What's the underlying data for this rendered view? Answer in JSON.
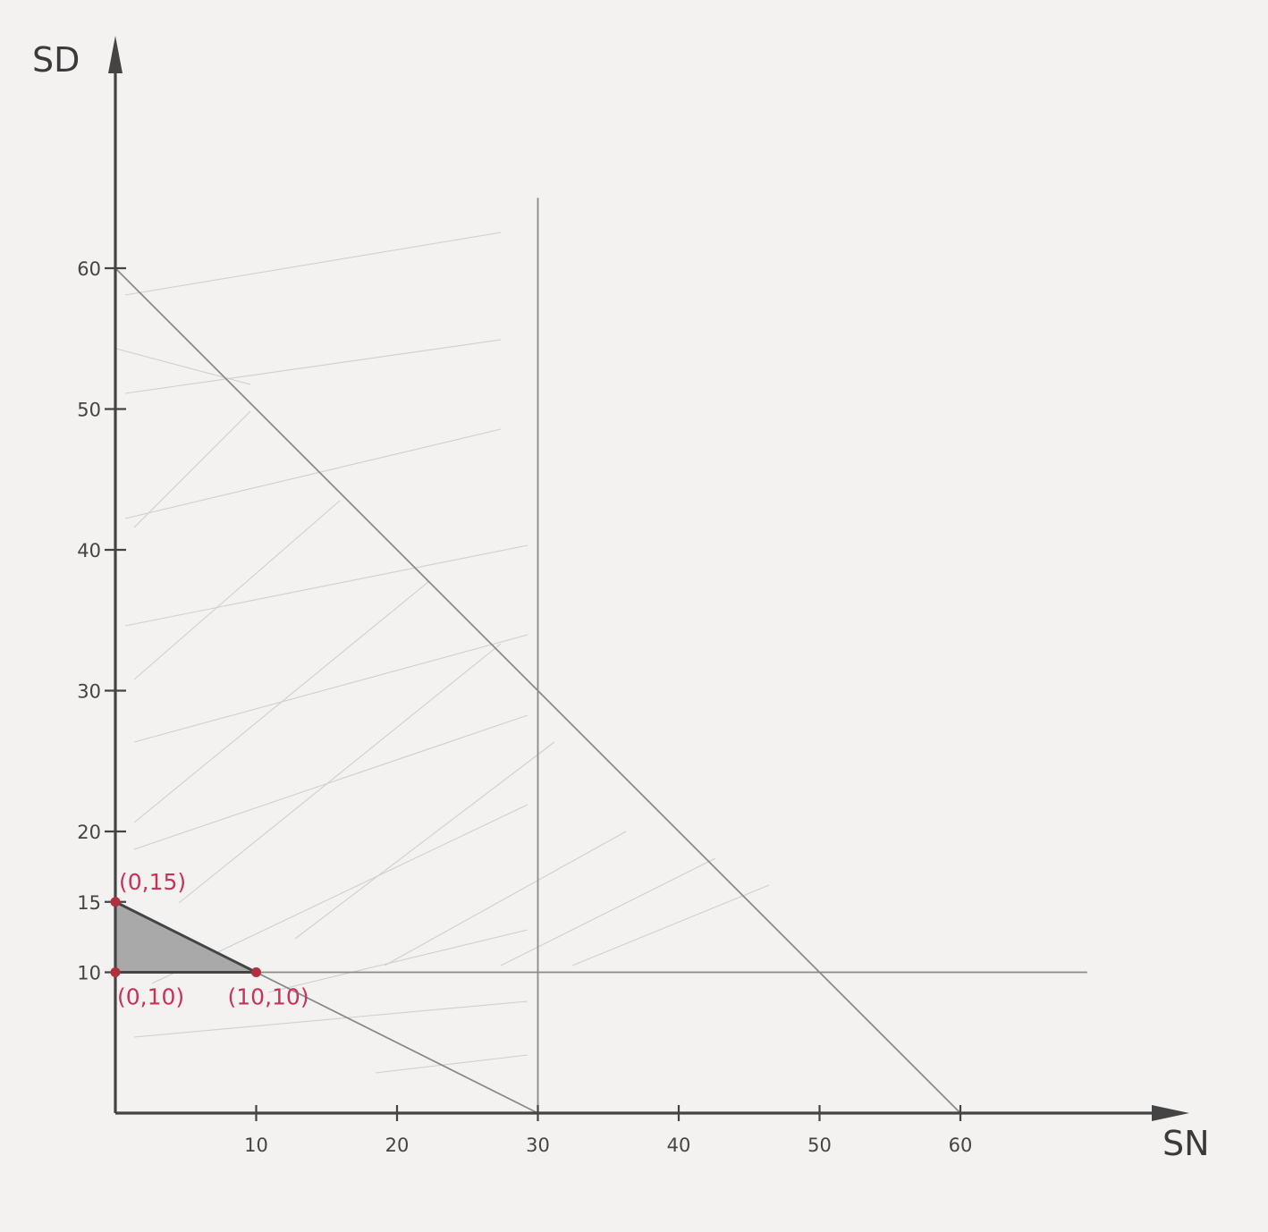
{
  "chart_data": {
    "type": "line",
    "xlabel": "SN",
    "ylabel": "SD",
    "xlim": [
      0,
      70
    ],
    "ylim": [
      0,
      70
    ],
    "x_ticks": [
      {
        "value": 10,
        "label": "10"
      },
      {
        "value": 20,
        "label": "20"
      },
      {
        "value": 30,
        "label": "30"
      },
      {
        "value": 40,
        "label": "40"
      },
      {
        "value": 50,
        "label": "50"
      },
      {
        "value": 60,
        "label": "60"
      }
    ],
    "y_ticks": [
      {
        "value": 10,
        "label": "10"
      },
      {
        "value": 15,
        "label": "15"
      },
      {
        "value": 20,
        "label": "20"
      },
      {
        "value": 30,
        "label": "30"
      },
      {
        "value": 40,
        "label": "40"
      },
      {
        "value": 50,
        "label": "50"
      },
      {
        "value": 60,
        "label": "60"
      }
    ],
    "series": [
      {
        "points": [
          [
            0,
            60
          ],
          [
            60,
            0
          ]
        ]
      },
      {
        "points": [
          [
            0,
            15
          ],
          [
            30,
            0
          ]
        ]
      },
      {
        "points": [
          [
            30,
            0
          ],
          [
            30,
            65
          ]
        ]
      },
      {
        "points": [
          [
            0,
            10
          ],
          [
            69,
            10
          ]
        ]
      }
    ],
    "feasible_region": [
      [
        0,
        15
      ],
      [
        10,
        10
      ],
      [
        0,
        10
      ]
    ],
    "points": [
      {
        "x": 0,
        "y": 15,
        "label": "(0,15)"
      },
      {
        "x": 0,
        "y": 10,
        "label": "(0,10)"
      },
      {
        "x": 10,
        "y": 10,
        "label": "(10,10)"
      }
    ],
    "colors": {
      "axis": "#444444",
      "lines": "#8a8a8a",
      "point": "#b03040",
      "label": "#c8315a",
      "region": "#a9a9a9"
    }
  }
}
